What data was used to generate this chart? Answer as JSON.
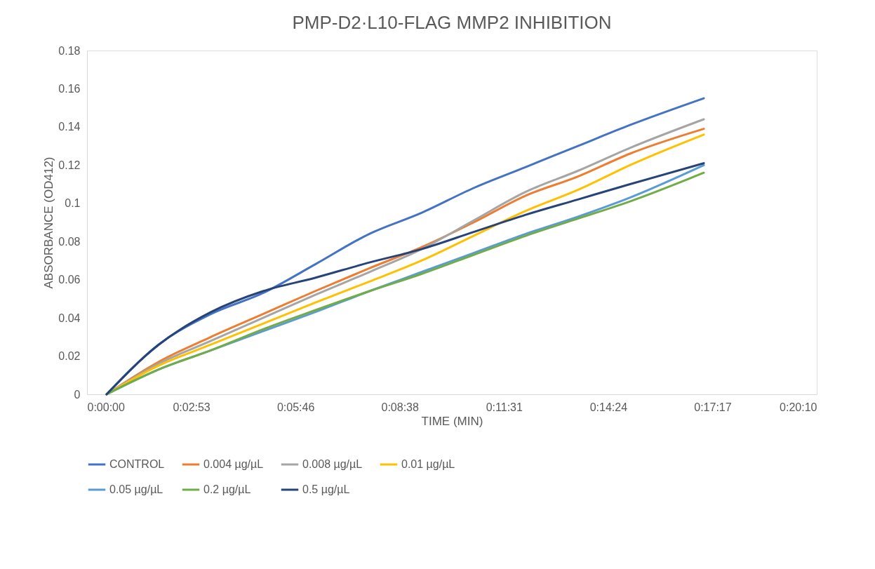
{
  "chart_data": {
    "type": "line",
    "title": "PMP-D2·L10-FLAG MMP2 INHIBITION",
    "xlabel": "TIME (MIN)",
    "ylabel": "ABSORBANCE (OD412)",
    "x": [
      0.009,
      0.033,
      0.057,
      0.081,
      0.105,
      0.13,
      0.154,
      0.178,
      0.202,
      0.226,
      0.25,
      0.284
    ],
    "series": [
      {
        "name": "CONTROL",
        "color": "#4472c4",
        "values": [
          0,
          0.026,
          0.042,
          0.053,
          0.068,
          0.084,
          0.095,
          0.108,
          0.119,
          0.13,
          0.141,
          0.155
        ]
      },
      {
        "name": "0.004 µg/µL",
        "color": "#ed7d31",
        "values": [
          0,
          0.017,
          0.03,
          0.042,
          0.054,
          0.066,
          0.077,
          0.09,
          0.104,
          0.114,
          0.126,
          0.139
        ]
      },
      {
        "name": "0.008 µg/µL",
        "color": "#a5a5a5",
        "values": [
          0,
          0.016,
          0.028,
          0.04,
          0.052,
          0.064,
          0.076,
          0.091,
          0.106,
          0.117,
          0.129,
          0.144
        ]
      },
      {
        "name": "0.01 µg/µL",
        "color": "#ffc000",
        "values": [
          0,
          0.015,
          0.026,
          0.037,
          0.048,
          0.059,
          0.07,
          0.083,
          0.096,
          0.107,
          0.12,
          0.136
        ]
      },
      {
        "name": "0.05 µg/µL",
        "color": "#5b9bd5",
        "values": [
          0,
          0.013,
          0.023,
          0.033,
          0.043,
          0.054,
          0.064,
          0.074,
          0.084,
          0.093,
          0.103,
          0.12
        ]
      },
      {
        "name": "0.2 µg/µL",
        "color": "#70ad47",
        "values": [
          0,
          0.013,
          0.023,
          0.034,
          0.044,
          0.054,
          0.063,
          0.073,
          0.083,
          0.092,
          0.101,
          0.116
        ]
      },
      {
        "name": "0.5 µg/µL",
        "color": "#264478",
        "values": [
          0,
          0.026,
          0.043,
          0.054,
          0.061,
          0.069,
          0.076,
          0.085,
          0.094,
          0.102,
          0.11,
          0.121
        ]
      }
    ],
    "xlim": [
      0,
      0.336
    ],
    "xticks": [
      {
        "value": 0,
        "label": "0:00:00"
      },
      {
        "value": 0.048,
        "label": "0:02:53"
      },
      {
        "value": 0.096,
        "label": "0:05:46"
      },
      {
        "value": 0.144,
        "label": "0:08:38"
      },
      {
        "value": 0.192,
        "label": "0:11:31"
      },
      {
        "value": 0.24,
        "label": "0:14:24"
      },
      {
        "value": 0.288,
        "label": "0:17:17"
      },
      {
        "value": 0.336,
        "label": "0:20:10"
      }
    ],
    "ylim": [
      0,
      0.18
    ],
    "yticks": [
      0,
      0.02,
      0.04,
      0.06,
      0.08,
      0.1,
      0.12,
      0.14,
      0.16,
      0.18
    ],
    "grid": false,
    "legend": "bottom",
    "marker": "none",
    "line_style": "solid"
  }
}
